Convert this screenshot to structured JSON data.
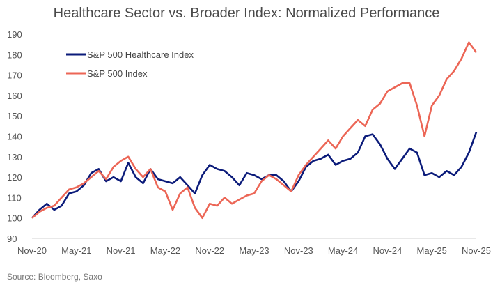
{
  "chart_data": {
    "type": "line",
    "title": "Healthcare Sector vs. Broader Index: Normalized Performance",
    "source": "Source: Bloomberg, Saxo",
    "xlabel": "",
    "ylabel": "",
    "ylim": [
      90,
      190
    ],
    "yticks": [
      90,
      100,
      110,
      120,
      130,
      140,
      150,
      160,
      170,
      180,
      190
    ],
    "xticks": [
      "Nov-20",
      "May-21",
      "Nov-21",
      "May-22",
      "Nov-22",
      "May-23",
      "Nov-23",
      "May-24",
      "Nov-24",
      "May-25",
      "Nov-25"
    ],
    "grid": false,
    "legend_position": "top-left",
    "x": [
      "2020-11",
      "2020-12",
      "2021-01",
      "2021-02",
      "2021-03",
      "2021-04",
      "2021-05",
      "2021-06",
      "2021-07",
      "2021-08",
      "2021-09",
      "2021-10",
      "2021-11",
      "2021-12",
      "2022-01",
      "2022-02",
      "2022-03",
      "2022-04",
      "2022-05",
      "2022-06",
      "2022-07",
      "2022-08",
      "2022-09",
      "2022-10",
      "2022-11",
      "2022-12",
      "2023-01",
      "2023-02",
      "2023-03",
      "2023-04",
      "2023-05",
      "2023-06",
      "2023-07",
      "2023-08",
      "2023-09",
      "2023-10",
      "2023-11",
      "2023-12",
      "2024-01",
      "2024-02",
      "2024-03",
      "2024-04",
      "2024-05",
      "2024-06",
      "2024-07",
      "2024-08",
      "2024-09",
      "2024-10",
      "2024-11",
      "2024-12",
      "2025-01",
      "2025-02",
      "2025-03",
      "2025-04",
      "2025-05",
      "2025-06",
      "2025-07",
      "2025-08",
      "2025-09",
      "2025-10",
      "2025-11"
    ],
    "series": [
      {
        "name": "S&P 500 Healthcare Index",
        "color": "#0b1b7a",
        "values": [
          100,
          104,
          107,
          104,
          106,
          112,
          113,
          116,
          122,
          124,
          118,
          120,
          118,
          127,
          120,
          117,
          124,
          119,
          118,
          117,
          120,
          116,
          112,
          121,
          126,
          124,
          123,
          120,
          116,
          122,
          121,
          119,
          121,
          121,
          118,
          113,
          118,
          125,
          128,
          129,
          131,
          126,
          128,
          129,
          132,
          140,
          141,
          136,
          129,
          124,
          129,
          134,
          132,
          121,
          122,
          120,
          123,
          121,
          125,
          132,
          142
        ]
      },
      {
        "name": "S&P 500 Index",
        "color": "#ec6656",
        "values": [
          100,
          103,
          105,
          106,
          110,
          114,
          115,
          117,
          120,
          123,
          119,
          125,
          128,
          130,
          124,
          120,
          124,
          115,
          113,
          104,
          112,
          115,
          105,
          100,
          107,
          106,
          110,
          107,
          109,
          111,
          112,
          118,
          121,
          119,
          116,
          113,
          121,
          126,
          130,
          134,
          138,
          134,
          140,
          144,
          148,
          145,
          153,
          156,
          162,
          164,
          166,
          166,
          155,
          140,
          155,
          160,
          168,
          172,
          178,
          186,
          181
        ]
      }
    ]
  }
}
